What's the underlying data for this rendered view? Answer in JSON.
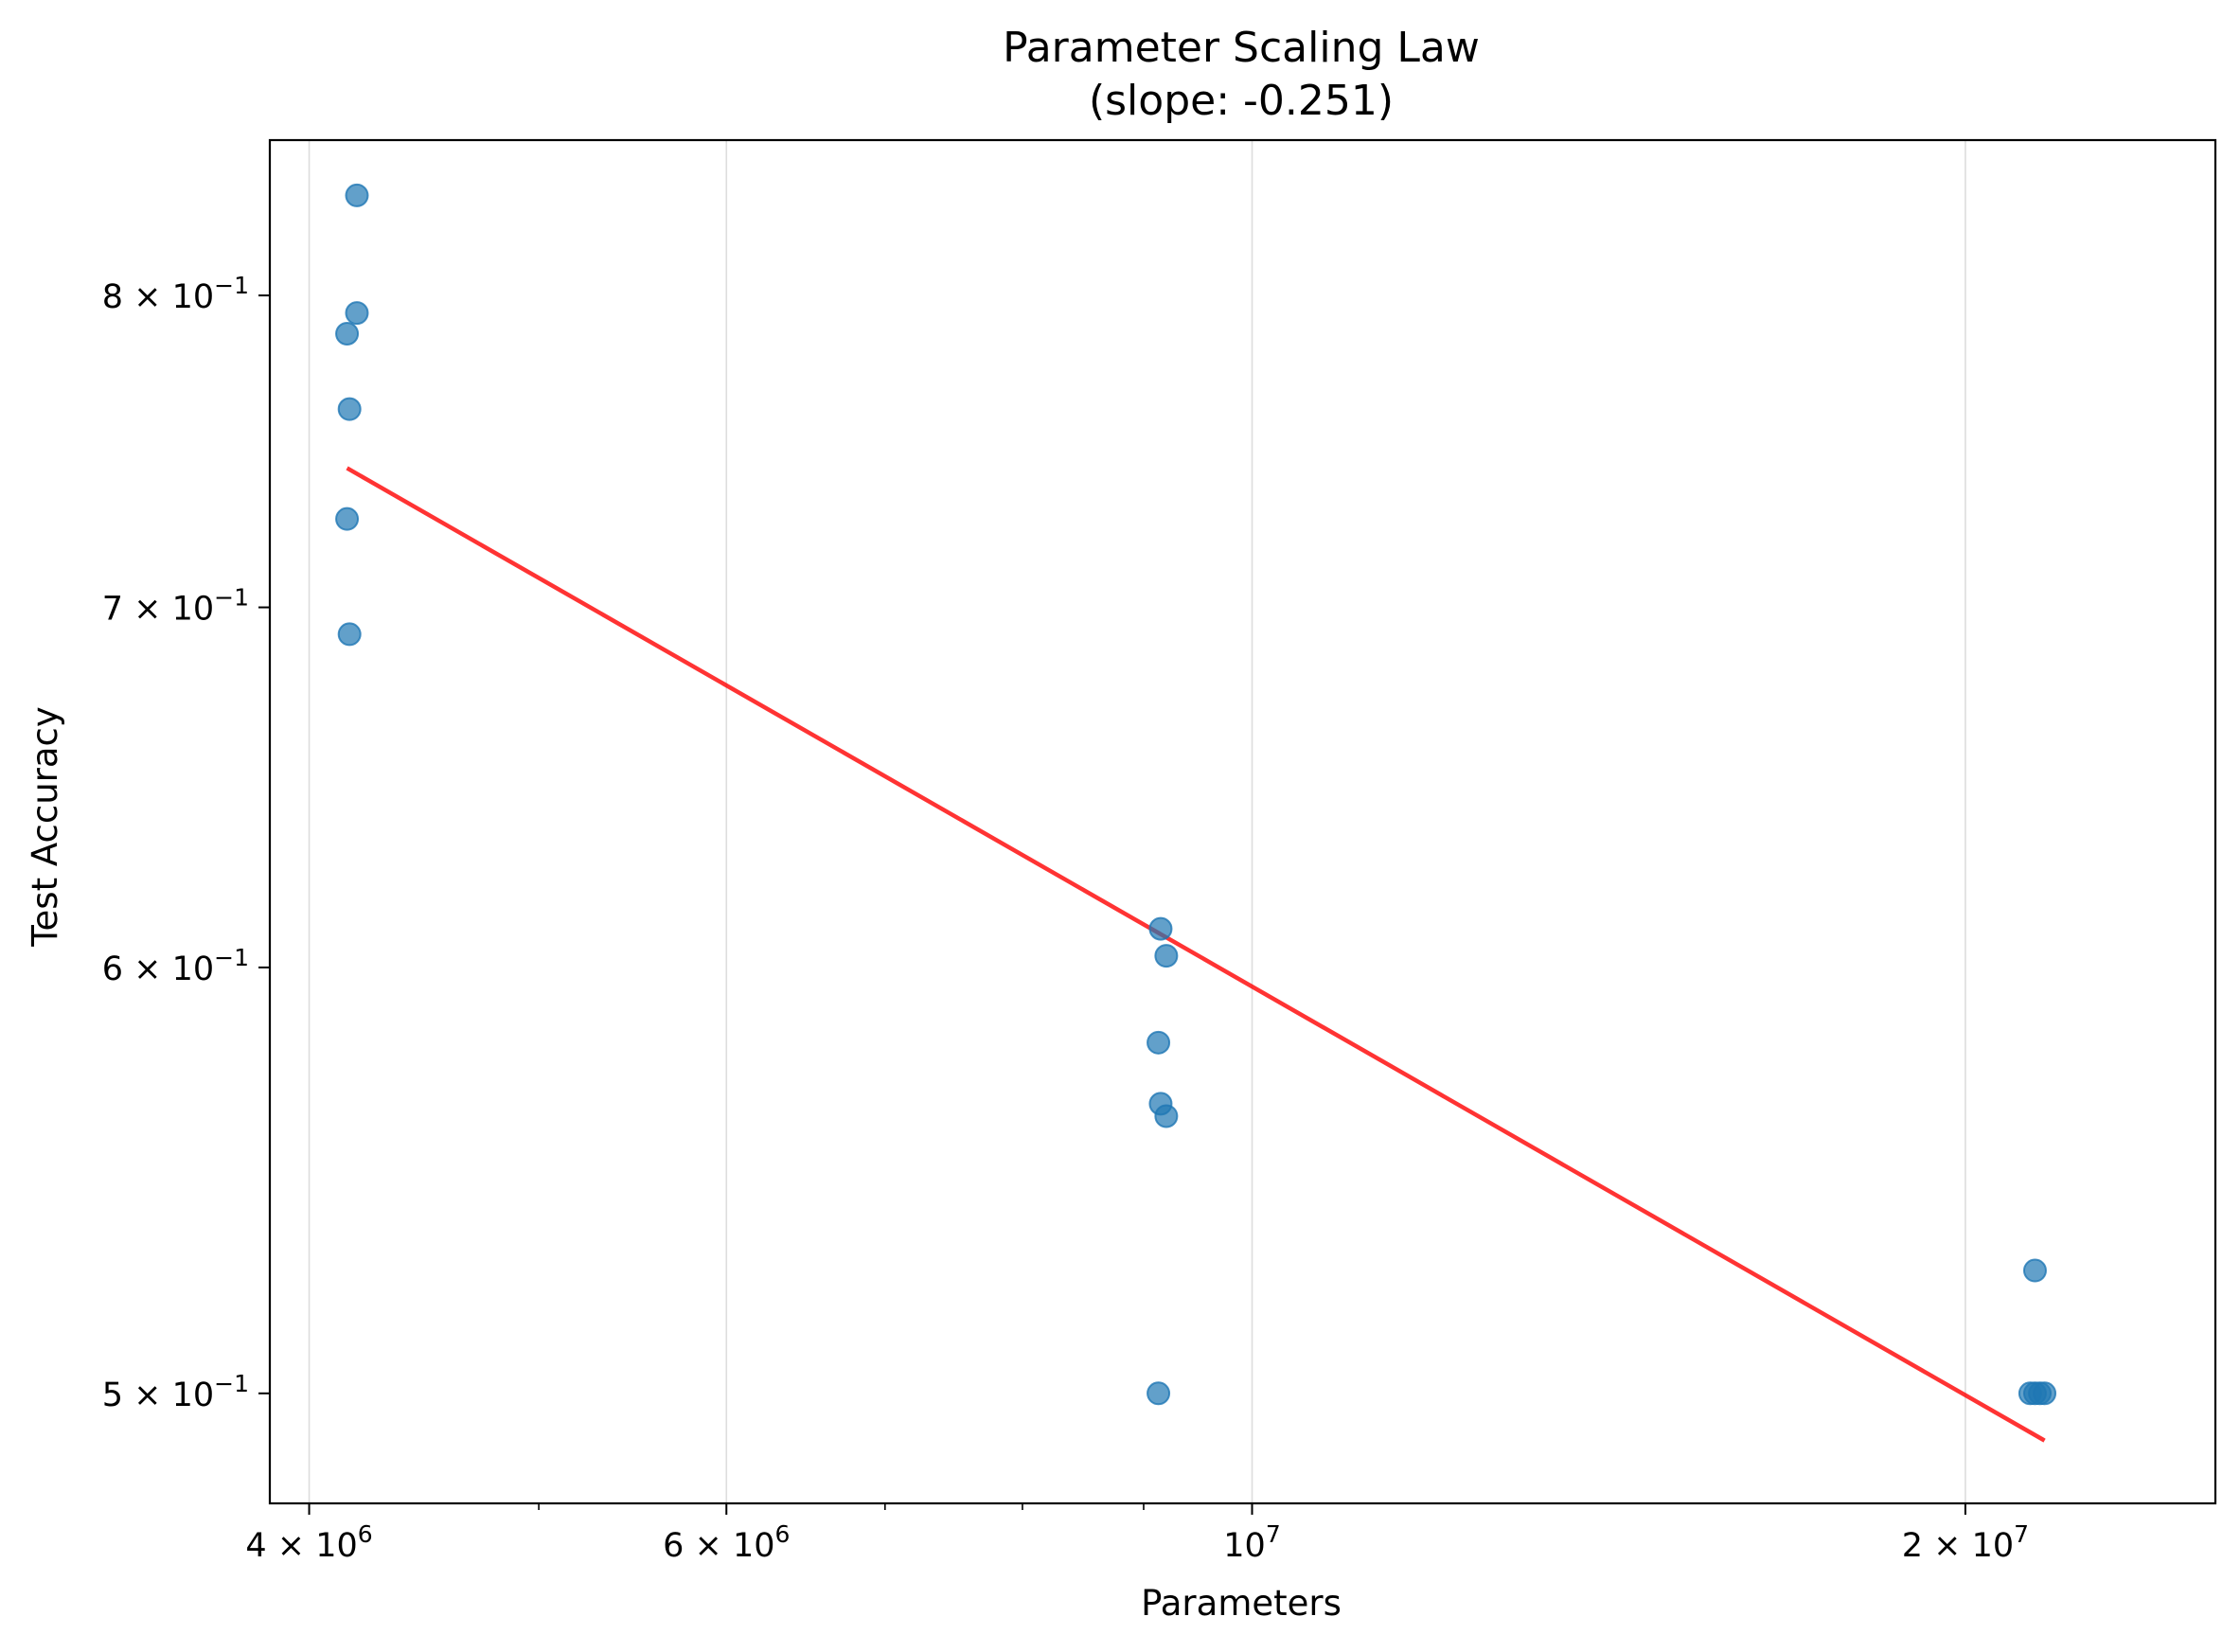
{
  "chart_data": {
    "type": "scatter",
    "title": "Parameter Scaling Law",
    "subtitle": "(slope: -0.251)",
    "xlabel": "Parameters",
    "ylabel": "Test Accuracy",
    "xscale": "log",
    "yscale": "log",
    "xlim": [
      3850000,
      25500000
    ],
    "ylim": [
      0.477,
      0.855
    ],
    "x_ticks": [
      {
        "value": 4000000,
        "mantissa": "4",
        "exp": "6"
      },
      {
        "value": 6000000,
        "mantissa": "6",
        "exp": "6"
      },
      {
        "value": 10000000,
        "mantissa": "",
        "exp": "7"
      },
      {
        "value": 20000000,
        "mantissa": "2",
        "exp": "7"
      }
    ],
    "x_minor_ticks": [
      5000000,
      7000000,
      8000000,
      9000000
    ],
    "y_ticks": [
      {
        "value": 0.8,
        "mantissa": "8",
        "exp": "−1"
      },
      {
        "value": 0.7,
        "mantissa": "7",
        "exp": "−1"
      },
      {
        "value": 0.6,
        "mantissa": "6",
        "exp": "−1"
      },
      {
        "value": 0.5,
        "mantissa": "5",
        "exp": "−1"
      }
    ],
    "grid": {
      "x": true,
      "y": false
    },
    "series": [
      {
        "color": "#1f77b4",
        "points": [
          {
            "x": 4190000,
            "y": 0.835
          },
          {
            "x": 4190000,
            "y": 0.794
          },
          {
            "x": 4150000,
            "y": 0.787
          },
          {
            "x": 4160000,
            "y": 0.762
          },
          {
            "x": 4150000,
            "y": 0.727
          },
          {
            "x": 4160000,
            "y": 0.692
          },
          {
            "x": 9150000,
            "y": 0.61
          },
          {
            "x": 9200000,
            "y": 0.603
          },
          {
            "x": 9130000,
            "y": 0.581
          },
          {
            "x": 9150000,
            "y": 0.566
          },
          {
            "x": 9200000,
            "y": 0.563
          },
          {
            "x": 9130000,
            "y": 0.5
          },
          {
            "x": 21400000,
            "y": 0.527
          },
          {
            "x": 21300000,
            "y": 0.5
          },
          {
            "x": 21400000,
            "y": 0.5
          },
          {
            "x": 21500000,
            "y": 0.5
          },
          {
            "x": 21600000,
            "y": 0.5
          }
        ]
      }
    ],
    "fit_line": {
      "color": "#ff0000",
      "slope": -0.251,
      "x": [
        4150000,
        21600000
      ],
      "y": [
        0.743,
        0.49
      ]
    }
  }
}
